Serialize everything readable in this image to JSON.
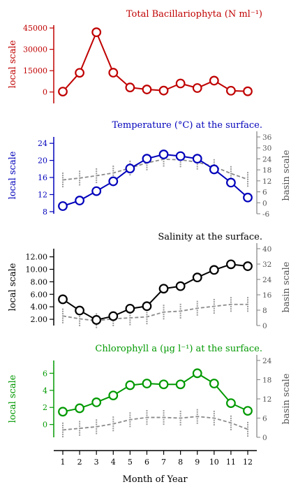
{
  "chart_data": [
    {
      "type": "line",
      "title": "Total Bacillariophyta (N ml⁻¹)",
      "ylabel": "local scale",
      "color": "#c00000",
      "ylim": [
        -8000,
        47000
      ],
      "yticks": [
        0,
        15000,
        30000,
        45000
      ],
      "ytick_labels": [
        "0",
        "15000",
        "30000",
        "45000"
      ],
      "x": [
        1,
        2,
        3,
        4,
        5,
        6,
        7,
        8,
        9,
        10,
        11,
        12
      ],
      "series": [
        {
          "values": [
            300,
            13500,
            42000,
            13600,
            3200,
            1800,
            1000,
            6000,
            2800,
            8000,
            900,
            500
          ]
        }
      ]
    },
    {
      "type": "line",
      "title": "Temperature (°C) at the surface.",
      "ylabel": "local scale",
      "ylabel_right": "basin scale",
      "color": "#0000bb",
      "ylim": [
        7.5,
        25.5
      ],
      "yticks": [
        8,
        12,
        16,
        20,
        24
      ],
      "ytick_labels": [
        "8",
        "12",
        "16",
        "20",
        "24"
      ],
      "ylim_right": [
        -6,
        36
      ],
      "yticks_right": [
        -6,
        0,
        6,
        12,
        18,
        24,
        30,
        36
      ],
      "ytick_labels_right": [
        "-6",
        "0",
        "6",
        "12",
        "18",
        "24",
        "30",
        "36"
      ],
      "x": [
        1,
        2,
        3,
        4,
        5,
        6,
        7,
        8,
        9,
        10,
        11,
        12
      ],
      "series": [
        {
          "values": [
            9.3,
            10.6,
            12.8,
            15.1,
            18.1,
            20.4,
            21.4,
            21.0,
            20.4,
            17.9,
            14.8,
            11.3
          ]
        },
        {
          "axis": "right",
          "style": "dashed",
          "values": [
            12.5,
            13.5,
            14.8,
            16.3,
            19.0,
            21.8,
            23.8,
            23.5,
            22.2,
            19.8,
            16.0,
            12.8
          ]
        }
      ]
    },
    {
      "type": "line",
      "title": "Salinity at the surface.",
      "ylabel": "local scale",
      "ylabel_right": "basin scale",
      "color": "#000000",
      "ylim": [
        1.0,
        13.3
      ],
      "yticks": [
        2,
        4,
        6,
        8,
        10,
        12
      ],
      "ytick_labels": [
        "2.00",
        "4.00",
        "6.00",
        "8.00",
        "10.00",
        "12.00"
      ],
      "ylim_right": [
        0,
        40
      ],
      "yticks_right": [
        0,
        8,
        16,
        24,
        32,
        40
      ],
      "ytick_labels_right": [
        "0",
        "8",
        "16",
        "24",
        "32",
        "40"
      ],
      "x": [
        1,
        2,
        3,
        4,
        5,
        6,
        7,
        8,
        9,
        10,
        11,
        12
      ],
      "series": [
        {
          "values": [
            5.2,
            3.4,
            1.9,
            2.5,
            3.7,
            4.1,
            6.9,
            7.3,
            8.7,
            9.9,
            10.8,
            10.5
          ]
        },
        {
          "axis": "right",
          "style": "dashed",
          "values": [
            5,
            3.5,
            2.5,
            3.5,
            4,
            4.5,
            7,
            7.5,
            9,
            10,
            11,
            11
          ]
        }
      ]
    },
    {
      "type": "line",
      "title": "Chlorophyll a (µg l⁻¹) at the surface.",
      "ylabel": "local scale",
      "ylabel_right": "basin scale",
      "color": "#009900",
      "ylim": [
        -1.5,
        7.5
      ],
      "yticks": [
        0,
        2,
        4,
        6
      ],
      "ytick_labels": [
        "0",
        "2",
        "4",
        "6"
      ],
      "ylim_right": [
        0,
        24
      ],
      "yticks_right": [
        0,
        6,
        12,
        18,
        24
      ],
      "ytick_labels_right": [
        "0",
        "6",
        "12",
        "18",
        "24"
      ],
      "x": [
        1,
        2,
        3,
        4,
        5,
        6,
        7,
        8,
        9,
        10,
        11,
        12
      ],
      "series": [
        {
          "values": [
            1.5,
            1.9,
            2.6,
            3.4,
            4.6,
            4.8,
            4.7,
            4.7,
            6.0,
            4.8,
            2.5,
            1.6
          ]
        },
        {
          "axis": "right",
          "style": "dashed",
          "values": [
            2.3,
            2.8,
            3.3,
            4.2,
            5.5,
            6.2,
            6.2,
            6.0,
            6.5,
            6.0,
            4.5,
            2.5
          ]
        }
      ]
    }
  ],
  "xaxis": {
    "label": "Month of Year",
    "ticks": [
      1,
      2,
      3,
      4,
      5,
      6,
      7,
      8,
      9,
      10,
      11,
      12
    ],
    "tick_labels": [
      "1",
      "2",
      "3",
      "4",
      "5",
      "6",
      "7",
      "8",
      "9",
      "10",
      "11",
      "12"
    ]
  }
}
